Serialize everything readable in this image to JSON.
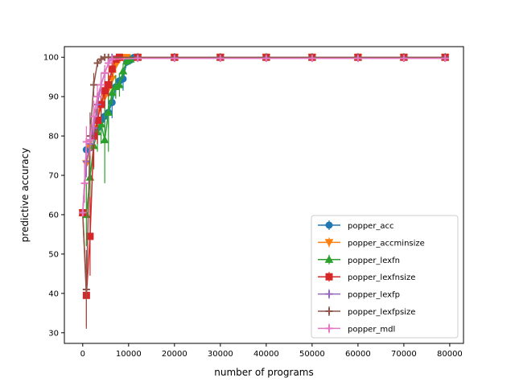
{
  "chart_data": {
    "type": "line",
    "title": "",
    "xlabel": "number of programs",
    "ylabel": "predictive accuracy",
    "xlim": [
      -4000,
      83000
    ],
    "ylim": [
      27.3,
      102.7
    ],
    "xticks": [
      0,
      10000,
      20000,
      30000,
      40000,
      50000,
      60000,
      70000,
      80000
    ],
    "yticks": [
      30,
      40,
      50,
      60,
      70,
      80,
      90,
      100
    ],
    "grid": false,
    "legend_position": "lower-right",
    "series": [
      {
        "name": "popper_acc",
        "color": "#1f77b4",
        "marker": "circle",
        "x": [
          0,
          800,
          1600,
          2400,
          3200,
          4000,
          4800,
          5600,
          6400,
          7200,
          8000,
          8800,
          9600,
          10400,
          11200,
          12000,
          20000,
          30000,
          40000,
          50000,
          60000,
          70000,
          79000
        ],
        "y": [
          60.5,
          76.5,
          77,
          81,
          82,
          84,
          85,
          86,
          88.5,
          92.5,
          94,
          94.5,
          98.8,
          99.3,
          100,
          100,
          100,
          100,
          100,
          100,
          100,
          100,
          100
        ],
        "err": [
          0,
          2,
          2,
          3,
          4,
          4,
          4,
          4,
          4,
          3,
          2,
          3,
          1,
          0.5,
          0,
          0,
          0,
          0,
          0,
          0,
          0,
          0,
          0
        ]
      },
      {
        "name": "popper_accminsize",
        "color": "#ff7f0e",
        "marker": "triangle-down",
        "x": [
          0,
          800,
          1600,
          2400,
          3200,
          4000,
          4800,
          5600,
          6400,
          7200,
          8000,
          8800,
          9600,
          12000,
          20000,
          30000,
          40000,
          50000,
          60000,
          70000,
          79000
        ],
        "y": [
          60.5,
          73,
          77,
          82,
          86,
          88,
          90,
          92,
          94.5,
          98,
          99.5,
          100,
          100,
          100,
          100,
          100,
          100,
          100,
          100,
          100,
          100
        ],
        "err": [
          0,
          3,
          3,
          3,
          4,
          4,
          4,
          3,
          3,
          2,
          0.5,
          0,
          0,
          0,
          0,
          0,
          0,
          0,
          0,
          0,
          0
        ]
      },
      {
        "name": "popper_lexfn",
        "color": "#2ca02c",
        "marker": "triangle-up",
        "x": [
          0,
          800,
          1600,
          2400,
          3200,
          4000,
          4800,
          5600,
          6400,
          7200,
          8000,
          8800,
          9600,
          10400,
          12000,
          20000,
          30000,
          40000,
          50000,
          60000,
          70000,
          79000
        ],
        "y": [
          60.5,
          60,
          69.5,
          77.5,
          81,
          83,
          79,
          86,
          91,
          92.5,
          93,
          96.5,
          99,
          99.5,
          100,
          100,
          100,
          100,
          100,
          100,
          100,
          100
        ],
        "err": [
          0,
          8,
          6,
          6,
          5,
          5,
          11,
          10,
          3,
          3,
          3,
          2,
          1,
          0.5,
          0,
          0,
          0,
          0,
          0,
          0,
          0,
          0
        ]
      },
      {
        "name": "popper_lexfnsize",
        "color": "#d62728",
        "marker": "square",
        "x": [
          0,
          800,
          1600,
          2400,
          3200,
          4000,
          4800,
          5600,
          6400,
          7200,
          8000,
          12000,
          20000,
          30000,
          40000,
          50000,
          60000,
          70000,
          79000
        ],
        "y": [
          60.5,
          39.5,
          54.5,
          80,
          84,
          88,
          91.5,
          93,
          97,
          99.5,
          100,
          100,
          100,
          100,
          100,
          100,
          100,
          100,
          100
        ],
        "err": [
          0,
          8,
          10,
          8,
          6,
          5,
          4,
          3,
          2,
          0.5,
          0,
          0,
          0,
          0,
          0,
          0,
          0,
          0,
          0
        ]
      },
      {
        "name": "popper_lexfp",
        "color": "#9467bd",
        "marker": "plus",
        "x": [
          0,
          800,
          1600,
          2400,
          3200,
          4000,
          4800,
          5600,
          6400,
          12000,
          20000,
          30000,
          40000,
          50000,
          60000,
          70000,
          79000
        ],
        "y": [
          60.5,
          73.5,
          78,
          82,
          88,
          93,
          96,
          98.5,
          100,
          100,
          100,
          100,
          100,
          100,
          100,
          100,
          100
        ],
        "err": [
          0,
          4,
          4,
          4,
          3,
          3,
          2,
          1,
          0,
          0,
          0,
          0,
          0,
          0,
          0,
          0,
          0
        ]
      },
      {
        "name": "popper_lexfpsize",
        "color": "#8c564b",
        "marker": "plus",
        "x": [
          0,
          800,
          1600,
          2400,
          3200,
          4000,
          4800,
          5600,
          12000,
          20000,
          30000,
          40000,
          50000,
          60000,
          70000,
          79000
        ],
        "y": [
          60.5,
          41,
          80,
          93,
          98.5,
          99.5,
          100,
          100,
          100,
          100,
          100,
          100,
          100,
          100,
          100,
          100
        ],
        "err": [
          0,
          10,
          6,
          3,
          1,
          0.5,
          0,
          0,
          0,
          0,
          0,
          0,
          0,
          0,
          0,
          0
        ]
      },
      {
        "name": "popper_mdl",
        "color": "#e377c2",
        "marker": "plus",
        "x": [
          0,
          400,
          800,
          1600,
          2400,
          3200,
          4000,
          4800,
          5600,
          6400,
          12000,
          20000,
          30000,
          40000,
          50000,
          60000,
          70000,
          79000
        ],
        "y": [
          60.5,
          68,
          78.5,
          79,
          85,
          90,
          93,
          96,
          98.5,
          99.5,
          99.7,
          99.7,
          99.7,
          99.7,
          99.7,
          99.7,
          99.7,
          99.7
        ],
        "err": [
          0,
          5,
          4,
          4,
          4,
          3,
          3,
          2,
          1,
          0.5,
          0,
          0,
          0,
          0,
          0,
          0,
          0,
          0
        ]
      }
    ]
  }
}
